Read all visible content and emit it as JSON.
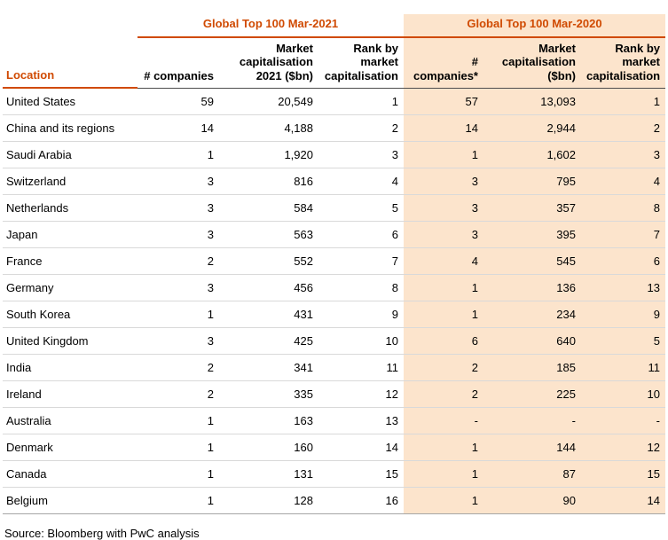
{
  "colors": {
    "accent": "#D04A02",
    "highlight_bg": "#FCE4CC"
  },
  "table": {
    "groups": {
      "g2021": "Global Top 100 Mar-2021",
      "g2020": "Global Top 100 Mar-2020"
    },
    "columns": {
      "location": "Location",
      "companies_2021": "# companies",
      "mktcap_2021": "Market capitalisation 2021 ($bn)",
      "rank_2021": "Rank by market capitalisation",
      "companies_2020": "# companies*",
      "mktcap_2020": "Market capitalisation ($bn)",
      "rank_2020": "Rank by market capitalisation"
    },
    "rows": [
      [
        "United States",
        "59",
        "20,549",
        "1",
        "57",
        "13,093",
        "1"
      ],
      [
        "China and its regions",
        "14",
        "4,188",
        "2",
        "14",
        "2,944",
        "2"
      ],
      [
        "Saudi Arabia",
        "1",
        "1,920",
        "3",
        "1",
        "1,602",
        "3"
      ],
      [
        "Switzerland",
        "3",
        "816",
        "4",
        "3",
        "795",
        "4"
      ],
      [
        "Netherlands",
        "3",
        "584",
        "5",
        "3",
        "357",
        "8"
      ],
      [
        "Japan",
        "3",
        "563",
        "6",
        "3",
        "395",
        "7"
      ],
      [
        "France",
        "2",
        "552",
        "7",
        "4",
        "545",
        "6"
      ],
      [
        "Germany",
        "3",
        "456",
        "8",
        "1",
        "136",
        "13"
      ],
      [
        "South Korea",
        "1",
        "431",
        "9",
        "1",
        "234",
        "9"
      ],
      [
        "United Kingdom",
        "3",
        "425",
        "10",
        "6",
        "640",
        "5"
      ],
      [
        "India",
        "2",
        "341",
        "11",
        "2",
        "185",
        "11"
      ],
      [
        "Ireland",
        "2",
        "335",
        "12",
        "2",
        "225",
        "10"
      ],
      [
        "Australia",
        "1",
        "163",
        "13",
        "-",
        "-",
        "-"
      ],
      [
        "Denmark",
        "1",
        "160",
        "14",
        "1",
        "144",
        "12"
      ],
      [
        "Canada",
        "1",
        "131",
        "15",
        "1",
        "87",
        "15"
      ],
      [
        "Belgium",
        "1",
        "128",
        "16",
        "1",
        "90",
        "14"
      ]
    ]
  },
  "footer": {
    "source": "Source: Bloomberg with PwC analysis"
  }
}
